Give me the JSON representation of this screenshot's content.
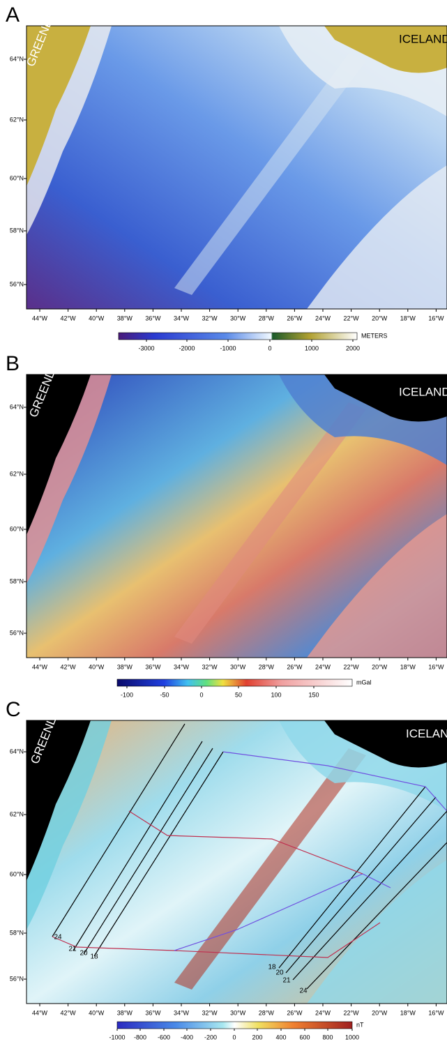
{
  "latitudes": [
    "56°N",
    "58°N",
    "60°N",
    "62°N",
    "64°N"
  ],
  "longitudes": [
    "44°W",
    "42°W",
    "40°W",
    "38°W",
    "36°W",
    "34°W",
    "32°W",
    "30°W",
    "28°W",
    "26°W",
    "24°W",
    "22°W",
    "20°W",
    "18°W",
    "16°W"
  ],
  "panels": [
    {
      "letter": "A",
      "labels": [
        "GREENLAND",
        "ICELAND"
      ],
      "colorbar": {
        "ticks": [
          "-3000",
          "-2000",
          "-1000",
          "0",
          "1000",
          "2000"
        ],
        "unit": "METERS"
      }
    },
    {
      "letter": "B",
      "labels": [
        "GREENLAND",
        "ICELAND"
      ],
      "colorbar": {
        "ticks": [
          "-100",
          "-50",
          "0",
          "50",
          "100",
          "150"
        ],
        "unit": "mGal"
      }
    },
    {
      "letter": "C",
      "labels": [
        "GREENLAND",
        "ICELAND"
      ],
      "chrons": [
        "24",
        "21",
        "20",
        "18",
        "18",
        "20",
        "21",
        "24"
      ],
      "colorbar": {
        "ticks": [
          "-1000",
          "-800",
          "-600",
          "-400",
          "-200",
          "0",
          "200",
          "400",
          "600",
          "800",
          "1000"
        ],
        "unit": "nT"
      }
    }
  ]
}
